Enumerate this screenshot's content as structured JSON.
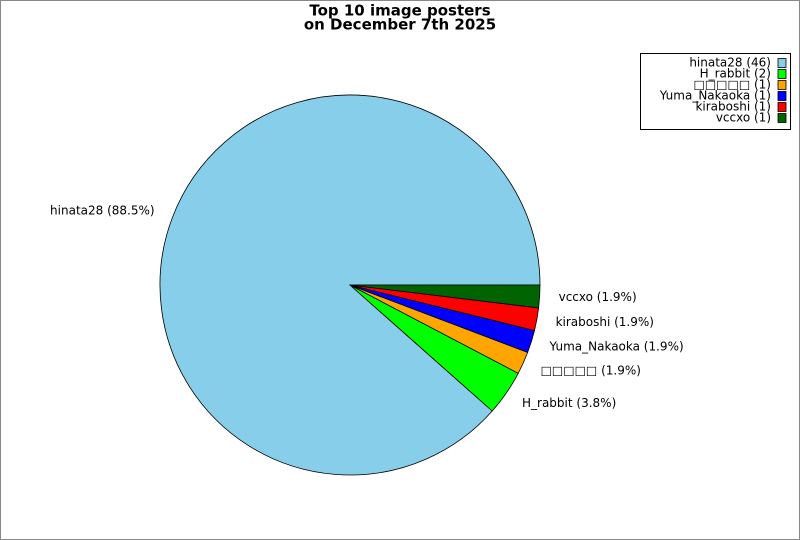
{
  "chart_data": {
    "type": "pie",
    "title_lines": [
      "Top 10 image posters",
      "on December 7th 2025"
    ],
    "categories": [
      "hinata28",
      "H_rabbit",
      "□□□□□",
      "Yuma_Nakaoka",
      "kiraboshi",
      "vccxo"
    ],
    "values": [
      46,
      2,
      1,
      1,
      1,
      1
    ],
    "colors": [
      "#87ceeb",
      "#00ff00",
      "#ffa500",
      "#0000ff",
      "#ff0000",
      "#006400"
    ],
    "legend_labels": [
      "hinata28 (46)",
      "H_rabbit (2)",
      "□□□□□ (1)",
      "Yuma_Nakaoka (1)",
      "kiraboshi (1)",
      "vccxo (1)"
    ],
    "percentages": [
      88.5,
      3.8,
      1.9,
      1.9,
      1.9,
      1.9
    ],
    "slice_labels": [
      "hinata28 (88.5%)",
      "H_rabbit (3.8%)",
      "□□□□□ (1.9%)",
      "Yuma_Nakaoka (1.9%)",
      "kiraboshi (1.9%)",
      "vccxo (1.9%)"
    ],
    "legend_position": "upper right"
  }
}
